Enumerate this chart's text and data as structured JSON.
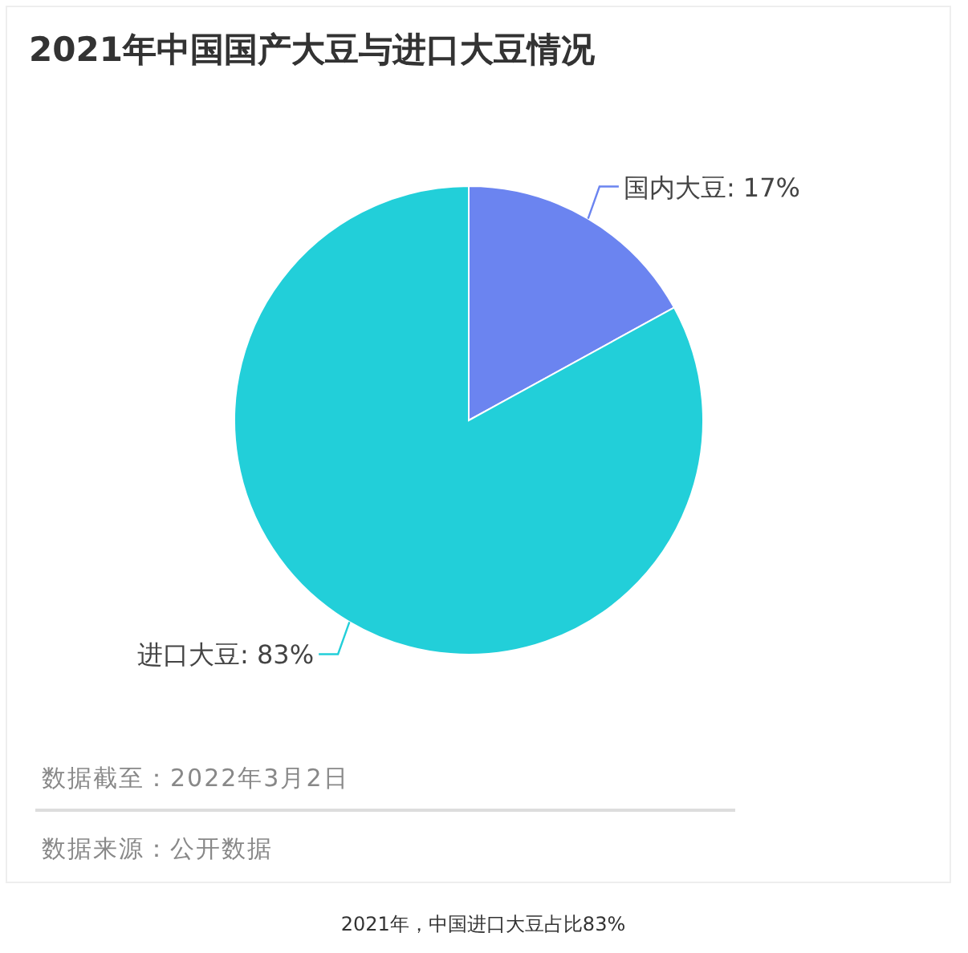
{
  "chart_data": {
    "type": "pie",
    "title": "2021年中国国产大豆与进口大豆情况",
    "categories": [
      "国内大豆",
      "进口大豆"
    ],
    "values": [
      17,
      83
    ],
    "colors": [
      "#6b84f0",
      "#22cfd9"
    ],
    "value_labels": [
      "17%",
      "83%"
    ],
    "annotations": [
      "数据截至：2022年3月2日",
      "数据来源：公开数据",
      "2021年，中国进口大豆占比83%"
    ]
  }
}
